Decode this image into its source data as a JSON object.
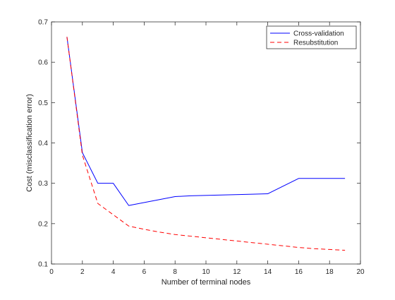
{
  "chart_data": {
    "type": "line",
    "title": "",
    "xlabel": "Number of terminal nodes",
    "ylabel": "Cost (misclassification error)",
    "xlim": [
      0,
      20
    ],
    "ylim": [
      0.1,
      0.7
    ],
    "xticks": [
      0,
      2,
      4,
      6,
      8,
      10,
      12,
      14,
      16,
      18,
      20
    ],
    "yticks": [
      0.1,
      0.2,
      0.3,
      0.4,
      0.5,
      0.6,
      0.7
    ],
    "grid": false,
    "legend_position": "top-right",
    "series": [
      {
        "name": "Cross-validation",
        "color": "#0000ff",
        "style": "solid",
        "x": [
          1,
          2,
          3,
          4,
          5,
          8,
          9,
          13,
          14,
          16,
          19
        ],
        "y": [
          0.663,
          0.376,
          0.3,
          0.3,
          0.245,
          0.267,
          0.269,
          0.273,
          0.274,
          0.312,
          0.312
        ]
      },
      {
        "name": "Resubstitution",
        "color": "#ff0000",
        "style": "dashed",
        "x": [
          1,
          2,
          3,
          4,
          5,
          6,
          7,
          8,
          9,
          10,
          11,
          12,
          13,
          14,
          15,
          16,
          17,
          18,
          19
        ],
        "y": [
          0.663,
          0.37,
          0.25,
          0.222,
          0.194,
          0.186,
          0.179,
          0.173,
          0.169,
          0.165,
          0.161,
          0.157,
          0.153,
          0.149,
          0.145,
          0.141,
          0.138,
          0.136,
          0.134
        ]
      }
    ]
  }
}
